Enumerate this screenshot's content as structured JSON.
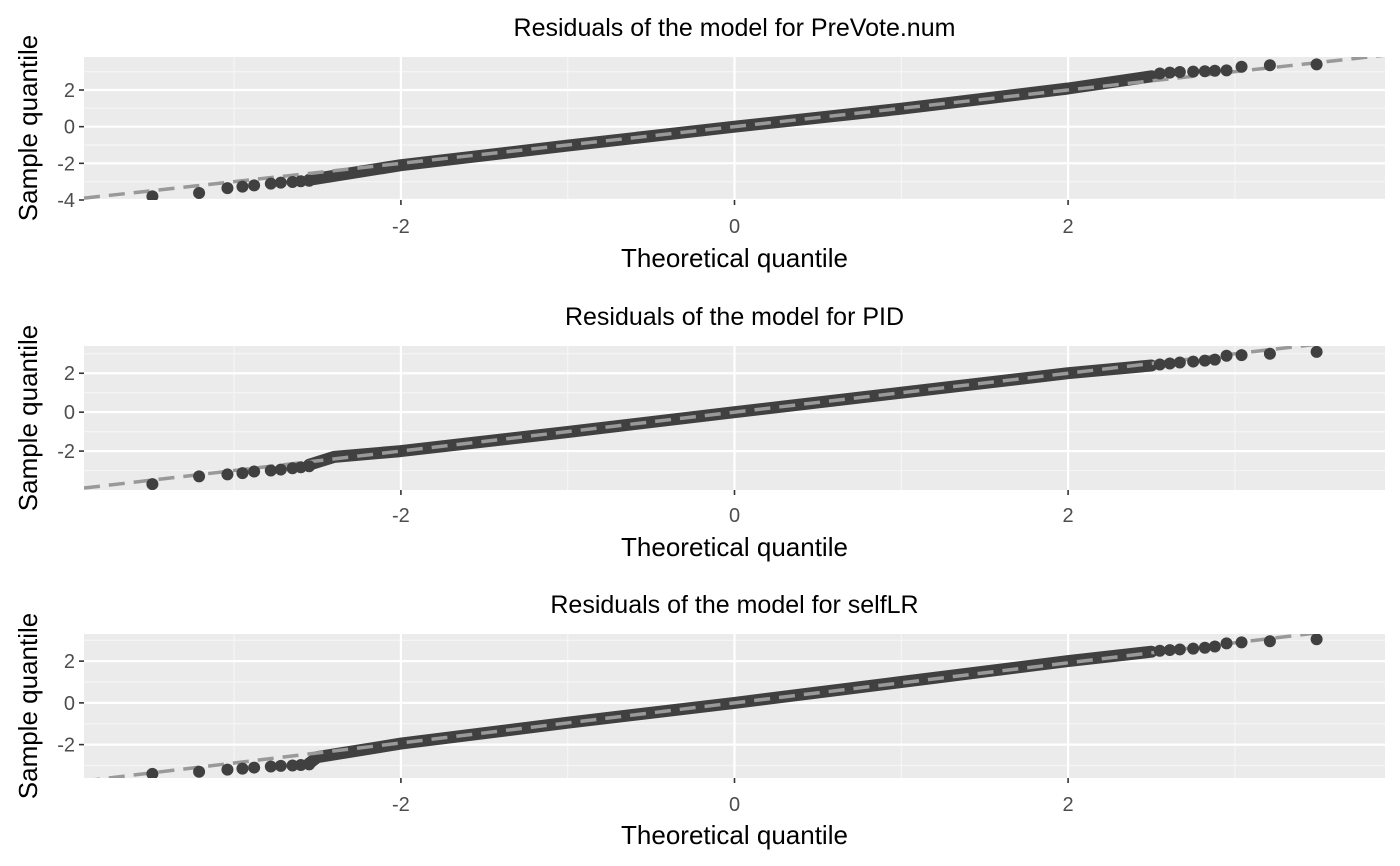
{
  "colors": {
    "panel_background": "#ebebeb",
    "grid_major": "#ffffff",
    "grid_minor": "#f5f5f5",
    "points": "#404040",
    "reference_line": "#999999",
    "tick_text": "#4d4d4d",
    "tick_mark": "#333333"
  },
  "chart_data": [
    {
      "type": "scatter",
      "subtype": "qq-plot",
      "title": "Residuals of the model for PreVote.num",
      "xlabel": "Theoretical quantile",
      "ylabel": "Sample quantile",
      "xlim": [
        -3.9,
        3.9
      ],
      "ylim": [
        -4.0,
        3.8
      ],
      "xticks": [
        -2,
        0,
        2
      ],
      "yticks": [
        -4,
        -2,
        0,
        2
      ],
      "grid": true,
      "reference_line": {
        "slope": 1.0,
        "intercept": 0.0,
        "style": "dashed"
      },
      "tail_points": [
        [
          -3.49,
          -3.8
        ],
        [
          -3.21,
          -3.62
        ],
        [
          -3.04,
          -3.35
        ],
        [
          -2.95,
          -3.27
        ],
        [
          -2.88,
          -3.2
        ],
        [
          -2.78,
          -3.11
        ],
        [
          -2.72,
          -3.05
        ],
        [
          -2.65,
          -3.02
        ],
        [
          -2.6,
          -2.98
        ],
        [
          -2.55,
          -2.95
        ],
        [
          2.55,
          2.9
        ],
        [
          2.61,
          2.95
        ],
        [
          2.67,
          2.98
        ],
        [
          2.75,
          3.0
        ],
        [
          2.82,
          3.02
        ],
        [
          2.88,
          3.05
        ],
        [
          2.95,
          3.07
        ],
        [
          3.04,
          3.27
        ],
        [
          3.21,
          3.35
        ],
        [
          3.49,
          3.4
        ]
      ],
      "body_points": [
        [
          -2.55,
          -2.9
        ],
        [
          -2.0,
          -2.1
        ],
        [
          -1.0,
          -1.03
        ],
        [
          0.0,
          0.0
        ],
        [
          1.0,
          0.98
        ],
        [
          1.2,
          1.2
        ],
        [
          2.0,
          2.08
        ],
        [
          2.5,
          2.75
        ]
      ]
    },
    {
      "type": "scatter",
      "subtype": "qq-plot",
      "title": "Residuals of the model for PID",
      "xlabel": "Theoretical quantile",
      "ylabel": "Sample quantile",
      "xlim": [
        -3.9,
        3.9
      ],
      "ylim": [
        -4.0,
        3.4
      ],
      "xticks": [
        -2,
        0,
        2
      ],
      "yticks": [
        -2,
        0,
        2
      ],
      "grid": true,
      "reference_line": {
        "slope": 1.0,
        "intercept": 0.0,
        "style": "dashed"
      },
      "tail_points": [
        [
          -3.49,
          -3.7
        ],
        [
          -3.21,
          -3.3
        ],
        [
          -3.04,
          -3.2
        ],
        [
          -2.95,
          -3.13
        ],
        [
          -2.88,
          -3.05
        ],
        [
          -2.78,
          -3.0
        ],
        [
          -2.72,
          -2.95
        ],
        [
          -2.65,
          -2.88
        ],
        [
          -2.6,
          -2.83
        ],
        [
          -2.55,
          -2.78
        ],
        [
          2.55,
          2.45
        ],
        [
          2.61,
          2.5
        ],
        [
          2.67,
          2.55
        ],
        [
          2.75,
          2.6
        ],
        [
          2.82,
          2.65
        ],
        [
          2.88,
          2.7
        ],
        [
          2.95,
          2.9
        ],
        [
          3.04,
          2.93
        ],
        [
          3.21,
          3.0
        ],
        [
          3.49,
          3.1
        ]
      ],
      "body_points": [
        [
          -2.55,
          -2.7
        ],
        [
          -2.4,
          -2.3
        ],
        [
          -2.0,
          -2.0
        ],
        [
          -1.0,
          -1.02
        ],
        [
          0.0,
          0.0
        ],
        [
          1.0,
          1.0
        ],
        [
          2.0,
          2.0
        ],
        [
          2.5,
          2.4
        ]
      ]
    },
    {
      "type": "scatter",
      "subtype": "qq-plot",
      "title": "Residuals of the model for selfLR",
      "xlabel": "Theoretical quantile",
      "ylabel": "Sample quantile",
      "xlim": [
        -3.9,
        3.9
      ],
      "ylim": [
        -3.6,
        3.3
      ],
      "xticks": [
        -2,
        0,
        2
      ],
      "yticks": [
        -2,
        0,
        2
      ],
      "grid": true,
      "reference_line": {
        "slope": 0.96,
        "intercept": 0.0,
        "style": "dashed"
      },
      "tail_points": [
        [
          -3.49,
          -3.4
        ],
        [
          -3.21,
          -3.3
        ],
        [
          -3.04,
          -3.2
        ],
        [
          -2.95,
          -3.15
        ],
        [
          -2.88,
          -3.1
        ],
        [
          -2.78,
          -3.05
        ],
        [
          -2.72,
          -3.02
        ],
        [
          -2.65,
          -3.0
        ],
        [
          -2.6,
          -2.98
        ],
        [
          -2.55,
          -2.95
        ],
        [
          2.55,
          2.5
        ],
        [
          2.61,
          2.53
        ],
        [
          2.67,
          2.56
        ],
        [
          2.75,
          2.6
        ],
        [
          2.82,
          2.64
        ],
        [
          2.88,
          2.7
        ],
        [
          2.95,
          2.85
        ],
        [
          3.04,
          2.9
        ],
        [
          3.21,
          2.95
        ],
        [
          3.49,
          3.05
        ]
      ],
      "body_points": [
        [
          -2.55,
          -2.9
        ],
        [
          -2.5,
          -2.6
        ],
        [
          -2.0,
          -1.95
        ],
        [
          -1.0,
          -0.95
        ],
        [
          0.0,
          0.0
        ],
        [
          1.0,
          1.0
        ],
        [
          2.0,
          2.0
        ],
        [
          2.5,
          2.45
        ]
      ]
    }
  ]
}
